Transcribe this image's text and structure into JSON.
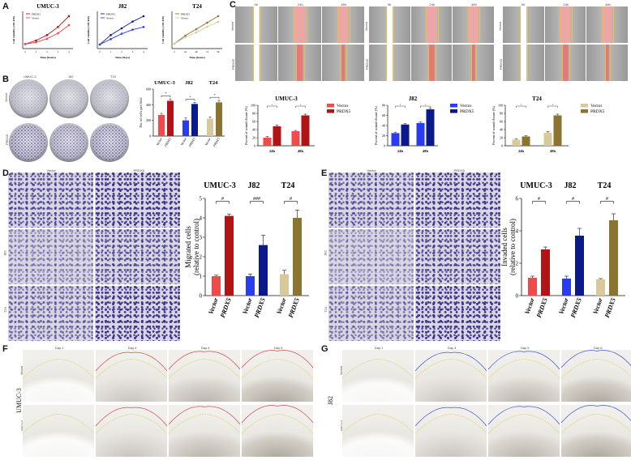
{
  "panels": {
    "A": {
      "label": "A",
      "charts": [
        {
          "title": "UMUC-3",
          "xlabel": "Time (hours)",
          "ylabel": "Cell viability (OD 450)",
          "legend": [
            "PRDX5",
            "Vector"
          ]
        },
        {
          "title": "J82",
          "xlabel": "Time (Days)",
          "ylabel": "Cell viability (OD 450)",
          "legend": [
            "PRDX5",
            "Vector"
          ]
        },
        {
          "title": "T24",
          "xlabel": "Time (hours)",
          "ylabel": "Cell viability (OD 450)",
          "legend": [
            "PRDX5",
            "Vector"
          ]
        }
      ]
    },
    "B": {
      "label": "B",
      "col_labels": [
        "UMUC-3",
        "J82",
        "T24"
      ],
      "row_labels": [
        "Vector",
        "PRDX5"
      ],
      "titles": [
        "UMUC-3",
        "J82",
        "T24"
      ],
      "ylabel": "No. of cells per field",
      "xticks": [
        "Vector",
        "PRDX5",
        "Vector",
        "PRDX5",
        "Vector",
        "PRDX5"
      ]
    },
    "C": {
      "label": "C",
      "time_labels": [
        "0h",
        "24h",
        "48h"
      ],
      "groups": [
        {
          "cell": "UMUC-3",
          "rows": [
            "Vector",
            "PRDX5"
          ]
        },
        {
          "cell": "J82",
          "rows": [
            "Vector",
            "PRDX5"
          ]
        },
        {
          "cell": "T24",
          "rows": [
            "Vector",
            "PRDX5"
          ]
        }
      ],
      "charts": [
        {
          "title": "UMUC-3",
          "ylabel": "Percent of wound closure (%)",
          "legend": [
            "Vector",
            "PRDX5"
          ],
          "xticks": [
            "24h",
            "48h"
          ]
        },
        {
          "title": "J82",
          "ylabel": "Percent of wound closure (%)",
          "legend": [
            "Vector",
            "PRDX5"
          ],
          "xticks": [
            "24h",
            "48h"
          ]
        },
        {
          "title": "T24",
          "ylabel": "Percent of wound closure (%)",
          "legend": [
            "Vector",
            "PRDX5"
          ],
          "xticks": [
            "24h",
            "48h"
          ]
        }
      ]
    },
    "D": {
      "label": "D",
      "col_labels": [
        "Vector",
        "PRDX5"
      ],
      "row_labels": [
        "UMUC-3",
        "J82",
        "T24"
      ],
      "titles": [
        "UMUC-3",
        "J82",
        "T24"
      ],
      "ylabel_line1": "Migrated cells",
      "ylabel_line2": "(relative to control)",
      "xticks": [
        "Vector",
        "PRDX5",
        "Vector",
        "PRDX5",
        "Vector",
        "PRDX5"
      ],
      "sig": [
        "#",
        "###",
        "#"
      ]
    },
    "E": {
      "label": "E",
      "col_labels": [
        "Vector",
        "PRDX5"
      ],
      "row_labels": [
        "UMUC-3",
        "J82",
        "T24"
      ],
      "titles": [
        "UMUC-3",
        "J82",
        "T24"
      ],
      "ylabel_line1": "Invaded cells",
      "ylabel_line2": "(relative to control)",
      "xticks": [
        "Vector",
        "PRDX5",
        "Vector",
        "PRDX5",
        "Vector",
        "PRDX5"
      ],
      "sig": [
        "#",
        "#",
        "#"
      ]
    },
    "F": {
      "label": "F",
      "cell": "UMUC-3",
      "days": [
        "Day 1",
        "Day 4",
        "Day 5",
        "Day 6"
      ],
      "rows": [
        "Vector",
        "PRDX5"
      ]
    },
    "G": {
      "label": "G",
      "cell": "J82",
      "days": [
        "Day 1",
        "Day 4",
        "Day 5",
        "Day 6"
      ],
      "rows": [
        "Vector",
        "PRDX5"
      ]
    }
  },
  "colors": {
    "vector_red": "#f04a4a",
    "prdx5_red": "#b01414",
    "vector_blue": "#2a3cf0",
    "prdx5_blue": "#0b1a8a",
    "vector_olive": "#d8c99a",
    "prdx5_olive": "#8a7430",
    "stain": "#3b2f8a",
    "wound": "#e06a6a"
  },
  "chart_data": [
    {
      "type": "line",
      "title": "UMUC-3",
      "xlabel": "Time (hours)",
      "ylabel": "Cell viability (OD 450)",
      "series": [
        {
          "name": "PRDX5",
          "x": [
            0,
            1,
            2,
            3,
            4
          ],
          "values": [
            0.25,
            0.45,
            0.75,
            1.2,
            1.8
          ]
        },
        {
          "name": "Vector",
          "x": [
            0,
            1,
            2,
            3,
            4
          ],
          "values": [
            0.25,
            0.35,
            0.55,
            0.85,
            1.3
          ]
        }
      ]
    },
    {
      "type": "line",
      "title": "J82",
      "xlabel": "Time (Days)",
      "ylabel": "Cell viability (OD 450)",
      "series": [
        {
          "name": "PRDX5",
          "x": [
            0,
            1,
            2,
            3,
            4
          ],
          "values": [
            0.3,
            1.0,
            1.5,
            2.0,
            2.4
          ]
        },
        {
          "name": "Vector",
          "x": [
            0,
            1,
            2,
            3,
            4
          ],
          "values": [
            0.3,
            0.7,
            1.1,
            1.4,
            1.6
          ]
        }
      ]
    },
    {
      "type": "line",
      "title": "T24",
      "xlabel": "Time (hours)",
      "ylabel": "Cell viability (OD 450)",
      "series": [
        {
          "name": "PRDX5",
          "x": [
            0,
            24,
            48,
            72,
            96
          ],
          "values": [
            0.3,
            0.8,
            1.2,
            1.6,
            2.0
          ]
        },
        {
          "name": "Vector",
          "x": [
            0,
            24,
            48,
            72,
            96
          ],
          "values": [
            0.3,
            0.7,
            1.0,
            1.35,
            1.65
          ]
        }
      ]
    },
    {
      "type": "bar",
      "title": "No. of cells per field",
      "categories": [
        "Vector",
        "PRDX5",
        "Vector",
        "PRDX5",
        "Vector",
        "PRDX5"
      ],
      "values": [
        270,
        450,
        200,
        410,
        220,
        430
      ],
      "errors": [
        20,
        25,
        30,
        20,
        25,
        25
      ],
      "ylim": [
        0,
        600
      ],
      "yticks": [
        0,
        200,
        400,
        600
      ]
    },
    {
      "type": "bar",
      "title": "UMUC-3",
      "categories": [
        "24h",
        "48h"
      ],
      "series": [
        {
          "name": "Vector",
          "values": [
            20,
            36
          ],
          "errors": [
            3,
            2
          ]
        },
        {
          "name": "PRDX5",
          "values": [
            48,
            75
          ],
          "errors": [
            3,
            3
          ]
        }
      ],
      "ylim": [
        0,
        100
      ],
      "yticks": [
        0,
        20,
        40,
        60,
        80,
        100
      ]
    },
    {
      "type": "bar",
      "title": "J82",
      "categories": [
        "24h",
        "48h"
      ],
      "series": [
        {
          "name": "Vector",
          "values": [
            25,
            45
          ],
          "errors": [
            2,
            2
          ]
        },
        {
          "name": "PRDX5",
          "values": [
            42,
            72
          ],
          "errors": [
            2,
            2
          ]
        }
      ],
      "ylim": [
        0,
        80
      ],
      "yticks": [
        0,
        20,
        40,
        60,
        80
      ]
    },
    {
      "type": "bar",
      "title": "T24",
      "categories": [
        "24h",
        "48h"
      ],
      "series": [
        {
          "name": "Vector",
          "values": [
            15,
            32
          ],
          "errors": [
            2,
            3
          ]
        },
        {
          "name": "PRDX5",
          "values": [
            23,
            75
          ],
          "errors": [
            2,
            3
          ]
        }
      ],
      "ylim": [
        0,
        100
      ],
      "yticks": [
        0,
        20,
        40,
        60,
        80,
        100
      ]
    },
    {
      "type": "bar",
      "title": "Migrated cells (relative to control)",
      "categories": [
        "Vector",
        "PRDX5",
        "Vector",
        "PRDX5",
        "Vector",
        "PRDX5"
      ],
      "values": [
        1.0,
        4.1,
        1.0,
        2.6,
        1.1,
        4.0
      ],
      "errors": [
        0.05,
        0.1,
        0.1,
        0.5,
        0.2,
        0.4
      ],
      "ylim": [
        0,
        5
      ],
      "yticks": [
        0,
        1,
        2,
        3,
        4,
        5
      ]
    },
    {
      "type": "bar",
      "title": "Invaded cells (relative to control)",
      "categories": [
        "Vector",
        "PRDX5",
        "Vector",
        "PRDX5",
        "Vector",
        "PRDX5"
      ],
      "values": [
        1.1,
        2.85,
        1.05,
        3.7,
        1.0,
        4.65
      ],
      "errors": [
        0.1,
        0.15,
        0.15,
        0.45,
        0.05,
        0.4
      ],
      "ylim": [
        0,
        6
      ],
      "yticks": [
        0,
        2,
        4,
        6
      ]
    }
  ]
}
